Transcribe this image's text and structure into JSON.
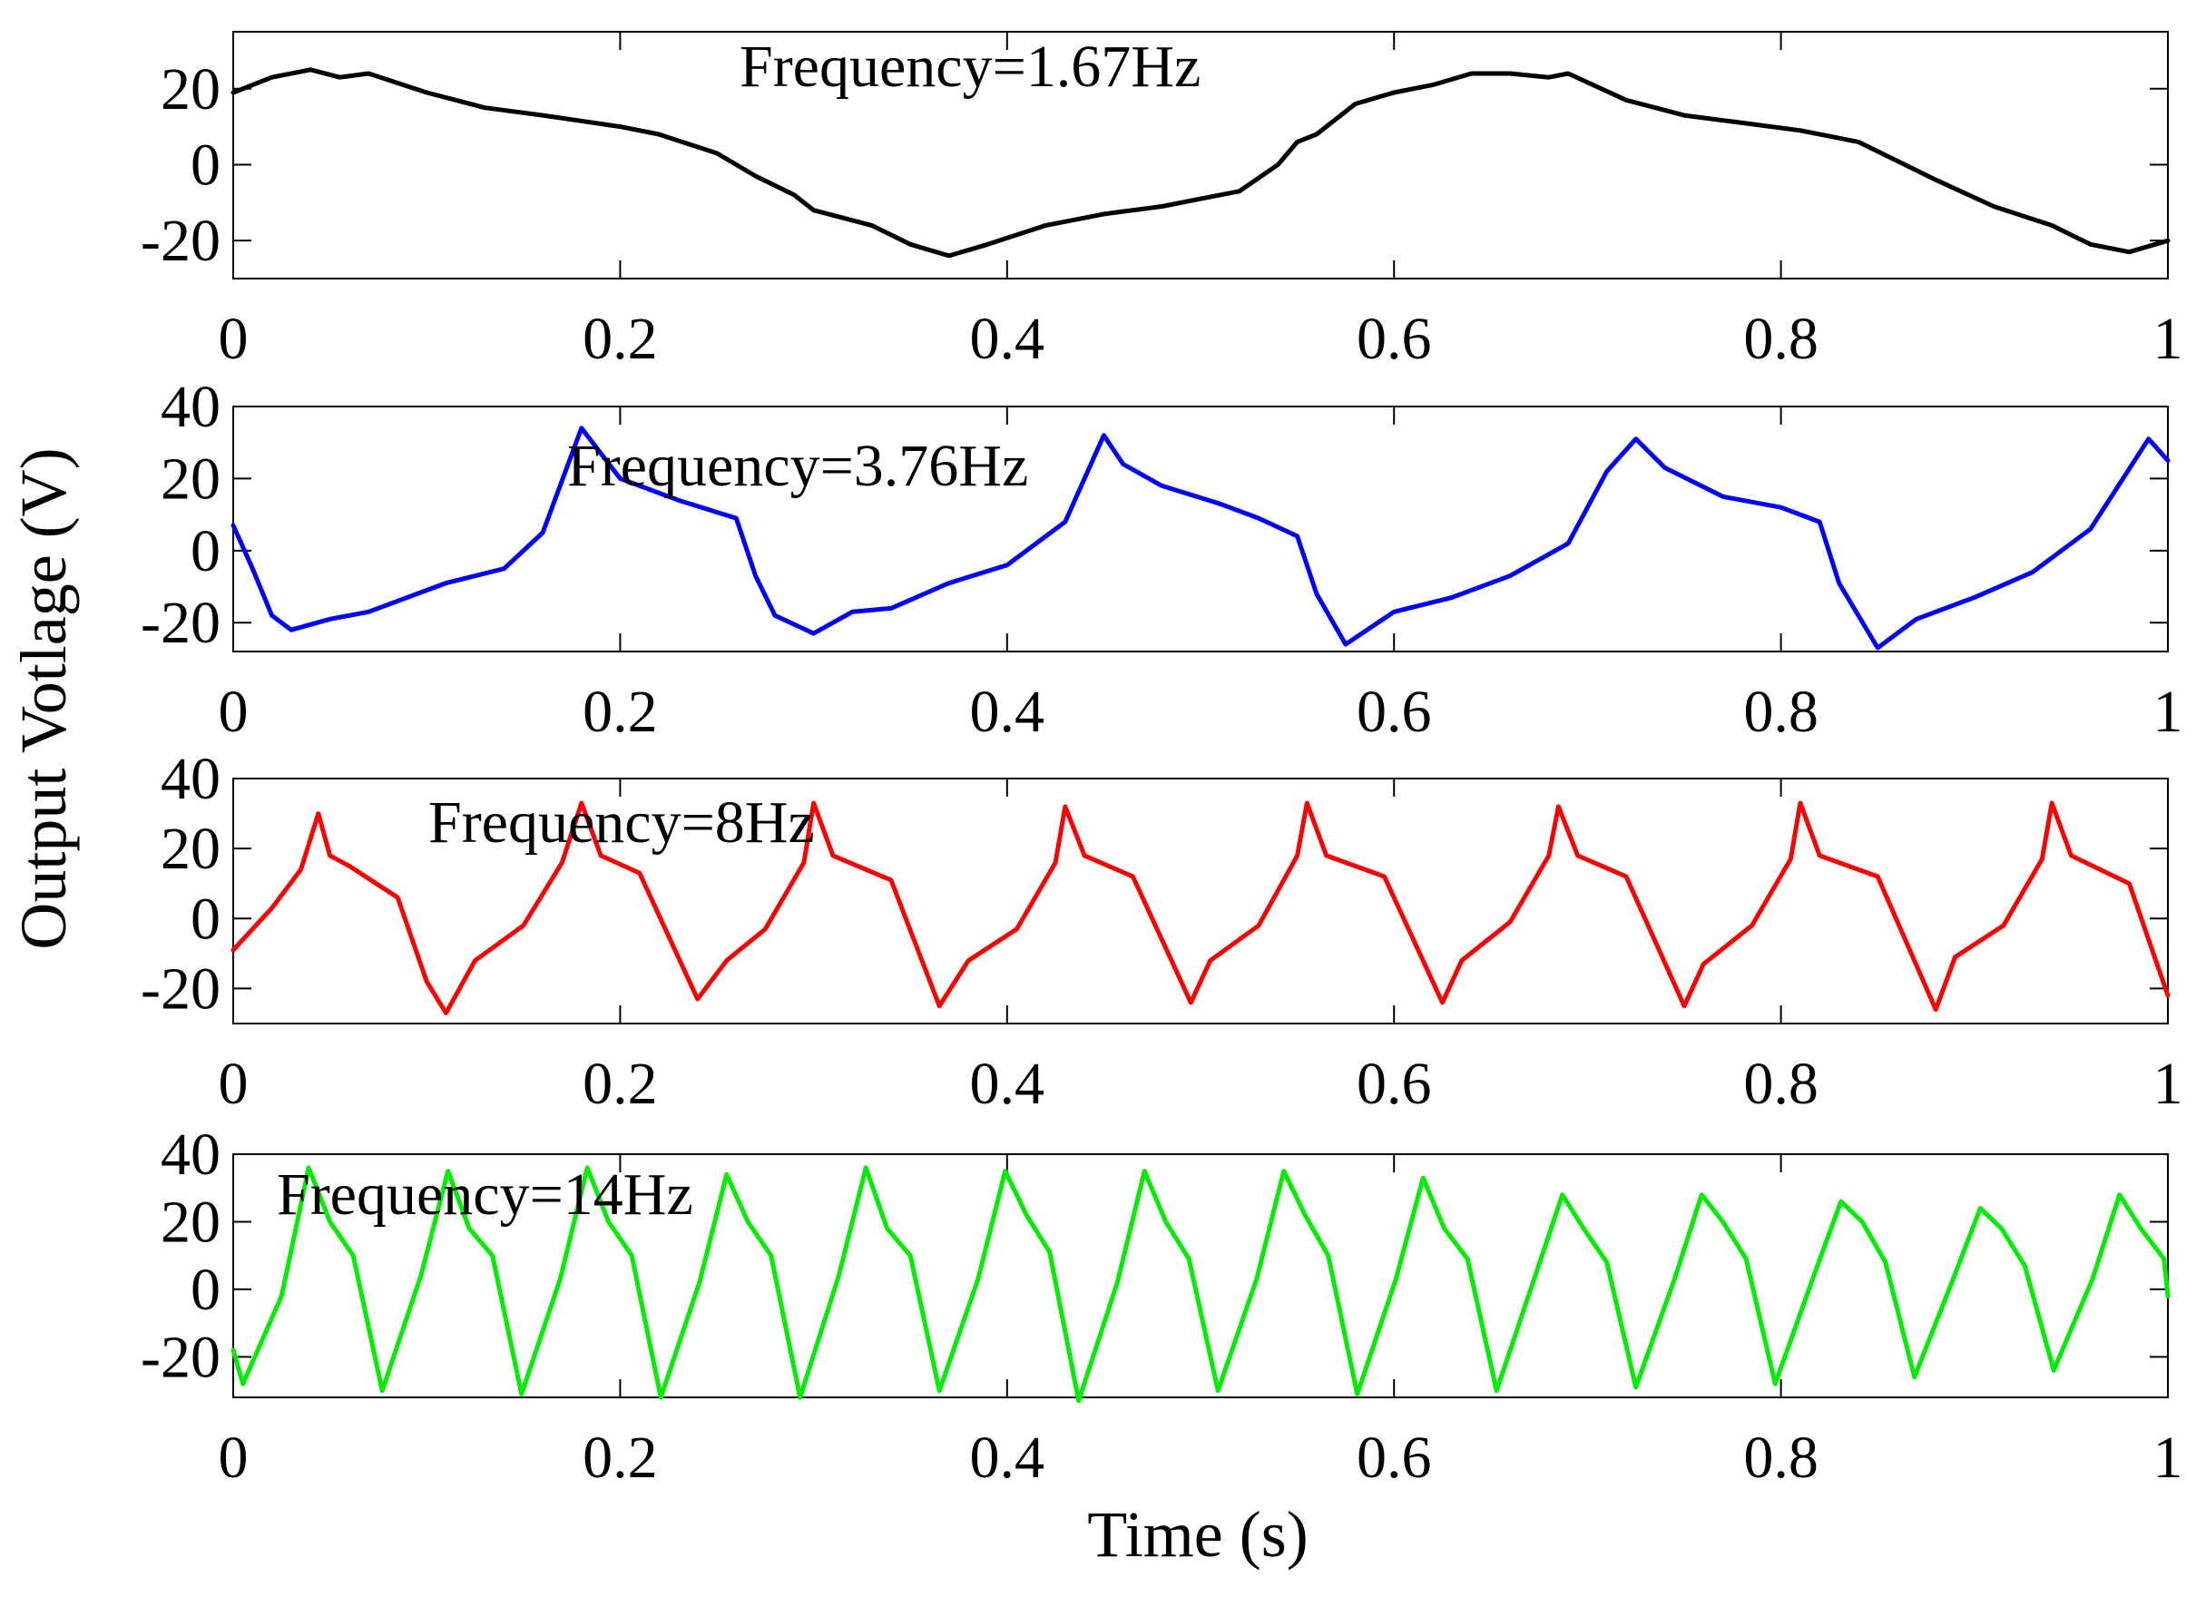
{
  "figure": {
    "ylabel": "Output Votlage (V)",
    "xlabel": "Time (s)"
  },
  "chart_data": [
    {
      "type": "line",
      "title": "",
      "annotation": "Frequency=1.67Hz",
      "xlabel": "",
      "ylabel": "",
      "xlim": [
        0,
        1
      ],
      "ylim": [
        -30,
        35
      ],
      "x_ticks": [
        0,
        0.2,
        0.4,
        0.6,
        0.8,
        1
      ],
      "x_tick_labels": [
        "0",
        "0.2",
        "0.4",
        "0.6",
        "0.8",
        "1"
      ],
      "y_ticks": [
        20,
        0,
        -20
      ],
      "y_tick_labels": [
        "20",
        "0",
        "-20"
      ],
      "grid": false,
      "series": [
        {
          "name": "Frequency=1.67Hz",
          "color": "#000000",
          "x": [
            0,
            0.02,
            0.04,
            0.055,
            0.07,
            0.1,
            0.13,
            0.16,
            0.2,
            0.22,
            0.25,
            0.27,
            0.29,
            0.3,
            0.33,
            0.35,
            0.37,
            0.39,
            0.42,
            0.45,
            0.48,
            0.5,
            0.52,
            0.54,
            0.55,
            0.56,
            0.58,
            0.6,
            0.62,
            0.64,
            0.66,
            0.68,
            0.69,
            0.72,
            0.75,
            0.78,
            0.81,
            0.84,
            0.86,
            0.88,
            0.91,
            0.94,
            0.96,
            0.98,
            1.0
          ],
          "values": [
            19,
            23,
            25,
            23,
            24,
            19,
            15,
            13,
            10,
            8,
            3,
            -3,
            -8,
            -12,
            -16,
            -21,
            -24,
            -21,
            -16,
            -13,
            -11,
            -9,
            -7,
            0,
            6,
            8,
            16,
            19,
            21,
            24,
            24,
            23,
            24,
            17,
            13,
            11,
            9,
            6,
            1,
            -4,
            -11,
            -16,
            -21,
            -23,
            -20
          ]
        }
      ]
    },
    {
      "type": "line",
      "title": "",
      "annotation": "Frequency=3.76Hz",
      "xlabel": "",
      "ylabel": "",
      "xlim": [
        0,
        1
      ],
      "ylim": [
        -28,
        40
      ],
      "x_ticks": [
        0,
        0.2,
        0.4,
        0.6,
        0.8,
        1
      ],
      "x_tick_labels": [
        "0",
        "0.2",
        "0.4",
        "0.6",
        "0.8",
        "1"
      ],
      "y_ticks": [
        40,
        20,
        0,
        -20
      ],
      "y_tick_labels": [
        "40",
        "20",
        "0",
        "-20"
      ],
      "grid": false,
      "series": [
        {
          "name": "Frequency=3.76Hz",
          "color": "#0000ff",
          "x": [
            0,
            0.01,
            0.02,
            0.03,
            0.05,
            0.07,
            0.09,
            0.11,
            0.14,
            0.16,
            0.18,
            0.2,
            0.23,
            0.26,
            0.27,
            0.28,
            0.3,
            0.32,
            0.34,
            0.37,
            0.4,
            0.43,
            0.45,
            0.46,
            0.48,
            0.51,
            0.53,
            0.55,
            0.56,
            0.575,
            0.6,
            0.63,
            0.66,
            0.69,
            0.71,
            0.725,
            0.74,
            0.77,
            0.8,
            0.82,
            0.83,
            0.85,
            0.87,
            0.9,
            0.93,
            0.96,
            0.99,
            1.0
          ],
          "values": [
            7,
            -5,
            -18,
            -22,
            -19,
            -17,
            -13,
            -9,
            -5,
            5,
            34,
            20,
            14,
            9,
            -7,
            -18,
            -23,
            -17,
            -16,
            -9,
            -4,
            8,
            32,
            24,
            18,
            13,
            9,
            4,
            -12,
            -26,
            -17,
            -13,
            -7,
            2,
            22,
            31,
            23,
            15,
            12,
            8,
            -9,
            -27,
            -19,
            -13,
            -6,
            6,
            31,
            25
          ]
        }
      ]
    },
    {
      "type": "line",
      "title": "",
      "annotation": "Frequency=8Hz",
      "xlabel": "",
      "ylabel": "",
      "xlim": [
        0,
        1
      ],
      "ylim": [
        -30,
        40
      ],
      "x_ticks": [
        0,
        0.2,
        0.4,
        0.6,
        0.8,
        1
      ],
      "x_tick_labels": [
        "0",
        "0.2",
        "0.4",
        "0.6",
        "0.8",
        "1"
      ],
      "y_ticks": [
        40,
        20,
        0,
        -20
      ],
      "y_tick_labels": [
        "40",
        "20",
        "0",
        "-20"
      ],
      "grid": false,
      "series": [
        {
          "name": "Frequency=8Hz",
          "color": "#ff0000",
          "x": [
            0,
            0.02,
            0.035,
            0.044,
            0.05,
            0.06,
            0.085,
            0.1,
            0.11,
            0.125,
            0.15,
            0.17,
            0.18,
            0.19,
            0.21,
            0.24,
            0.255,
            0.275,
            0.295,
            0.3,
            0.31,
            0.34,
            0.365,
            0.38,
            0.405,
            0.425,
            0.43,
            0.44,
            0.465,
            0.495,
            0.505,
            0.53,
            0.55,
            0.555,
            0.565,
            0.595,
            0.625,
            0.635,
            0.66,
            0.68,
            0.685,
            0.695,
            0.72,
            0.75,
            0.76,
            0.785,
            0.805,
            0.81,
            0.82,
            0.85,
            0.88,
            0.89,
            0.915,
            0.935,
            0.94,
            0.95,
            0.98,
            1.0
          ],
          "values": [
            -9,
            3,
            14,
            30,
            18,
            15,
            6,
            -18,
            -27,
            -12,
            -2,
            16,
            33,
            18,
            13,
            -23,
            -12,
            -3,
            16,
            33,
            18,
            11,
            -25,
            -12,
            -3,
            16,
            32,
            18,
            12,
            -24,
            -12,
            -2,
            18,
            33,
            18,
            12,
            -24,
            -12,
            -1,
            18,
            32,
            18,
            12,
            -25,
            -13,
            -2,
            17,
            33,
            18,
            12,
            -26,
            -11,
            -2,
            17,
            33,
            18,
            10,
            -22
          ]
        }
      ]
    },
    {
      "type": "line",
      "title": "",
      "annotation": "Frequency=14Hz",
      "xlabel": "",
      "ylabel": "",
      "xlim": [
        0,
        1
      ],
      "ylim": [
        -32,
        40
      ],
      "x_ticks": [
        0,
        0.2,
        0.4,
        0.6,
        0.8,
        1
      ],
      "x_tick_labels": [
        "0",
        "0.2",
        "0.4",
        "0.6",
        "0.8",
        "1"
      ],
      "y_ticks": [
        40,
        20,
        0,
        -20
      ],
      "y_tick_labels": [
        "40",
        "20",
        "0",
        "-20"
      ],
      "grid": false,
      "series": [
        {
          "name": "Frequency=14Hz",
          "color": "#00ee00",
          "x": [
            0,
            0.005,
            0.025,
            0.039,
            0.05,
            0.062,
            0.077,
            0.097,
            0.111,
            0.122,
            0.134,
            0.149,
            0.169,
            0.183,
            0.194,
            0.206,
            0.221,
            0.241,
            0.255,
            0.266,
            0.278,
            0.293,
            0.313,
            0.327,
            0.338,
            0.35,
            0.365,
            0.385,
            0.399,
            0.41,
            0.422,
            0.437,
            0.457,
            0.471,
            0.482,
            0.494,
            0.509,
            0.529,
            0.543,
            0.554,
            0.566,
            0.581,
            0.601,
            0.615,
            0.626,
            0.638,
            0.653,
            0.673,
            0.687,
            0.698,
            0.71,
            0.725,
            0.745,
            0.759,
            0.77,
            0.782,
            0.797,
            0.817,
            0.831,
            0.842,
            0.854,
            0.869,
            0.889,
            0.903,
            0.914,
            0.926,
            0.941,
            0.961,
            0.975,
            0.986,
            0.998,
            1.0
          ],
          "values": [
            -18,
            -28,
            -2,
            36,
            20,
            10,
            -30,
            4,
            35,
            18,
            10,
            -31,
            3,
            36,
            20,
            10,
            -32,
            2,
            34,
            20,
            10,
            -32,
            4,
            36,
            18,
            10,
            -30,
            3,
            35,
            22,
            11,
            -33,
            2,
            35,
            20,
            9,
            -30,
            3,
            35,
            22,
            10,
            -31,
            3,
            33,
            18,
            9,
            -30,
            4,
            28,
            18,
            8,
            -29,
            3,
            28,
            20,
            9,
            -28,
            4,
            26,
            20,
            8,
            -26,
            3,
            24,
            18,
            7,
            -24,
            3,
            28,
            18,
            9,
            -2
          ]
        }
      ]
    }
  ]
}
